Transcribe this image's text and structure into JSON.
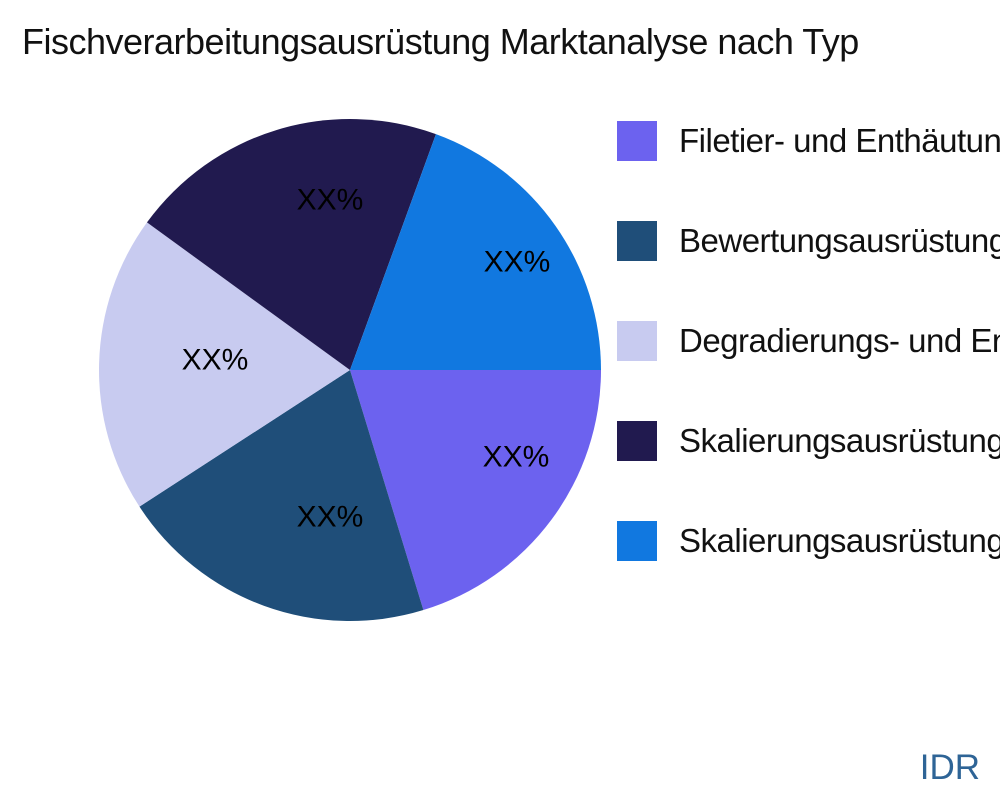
{
  "header": {
    "title": "Fischverarbeitungsausrüstung Marktanalyse nach Typ"
  },
  "chart_data": {
    "type": "pie",
    "title": "Fischverarbeitungsausrüstung Marktanalyse nach Typ",
    "categories": [
      "Filetier- und Enthäutungsausrüstung",
      "Bewertungsausrüstung",
      "Degradierungs- und Ent",
      "Skalierungsausrüstung",
      "Skalierungsausrüstung"
    ],
    "values": [
      20.28,
      20.56,
      19.17,
      20.56,
      19.44
    ],
    "value_labels": [
      "XX%",
      "XX%",
      "XX%",
      "XX%",
      "XX%"
    ],
    "unit": "%",
    "colors": [
      "#6C62EF",
      "#1F4E79",
      "#C8CBF0",
      "#211A4F",
      "#1178E0"
    ],
    "start_angle_deg": 0,
    "direction": "clockwise",
    "legend_position": "right",
    "grid": false
  },
  "legend": {
    "items": [
      {
        "label": "Filetier- und Enthäutungsausrüstung",
        "color": "#6C62EF"
      },
      {
        "label": "Bewertungsausrüstung",
        "color": "#1F4E79"
      },
      {
        "label": "Degradierungs- und Ent",
        "color": "#C8CBF0"
      },
      {
        "label": "Skalierungsausrüstung",
        "color": "#211A4F"
      },
      {
        "label": "Skalierungsausrüstung",
        "color": "#1178E0"
      }
    ]
  },
  "watermark": {
    "text": "IDR",
    "color": "#2E6496"
  }
}
